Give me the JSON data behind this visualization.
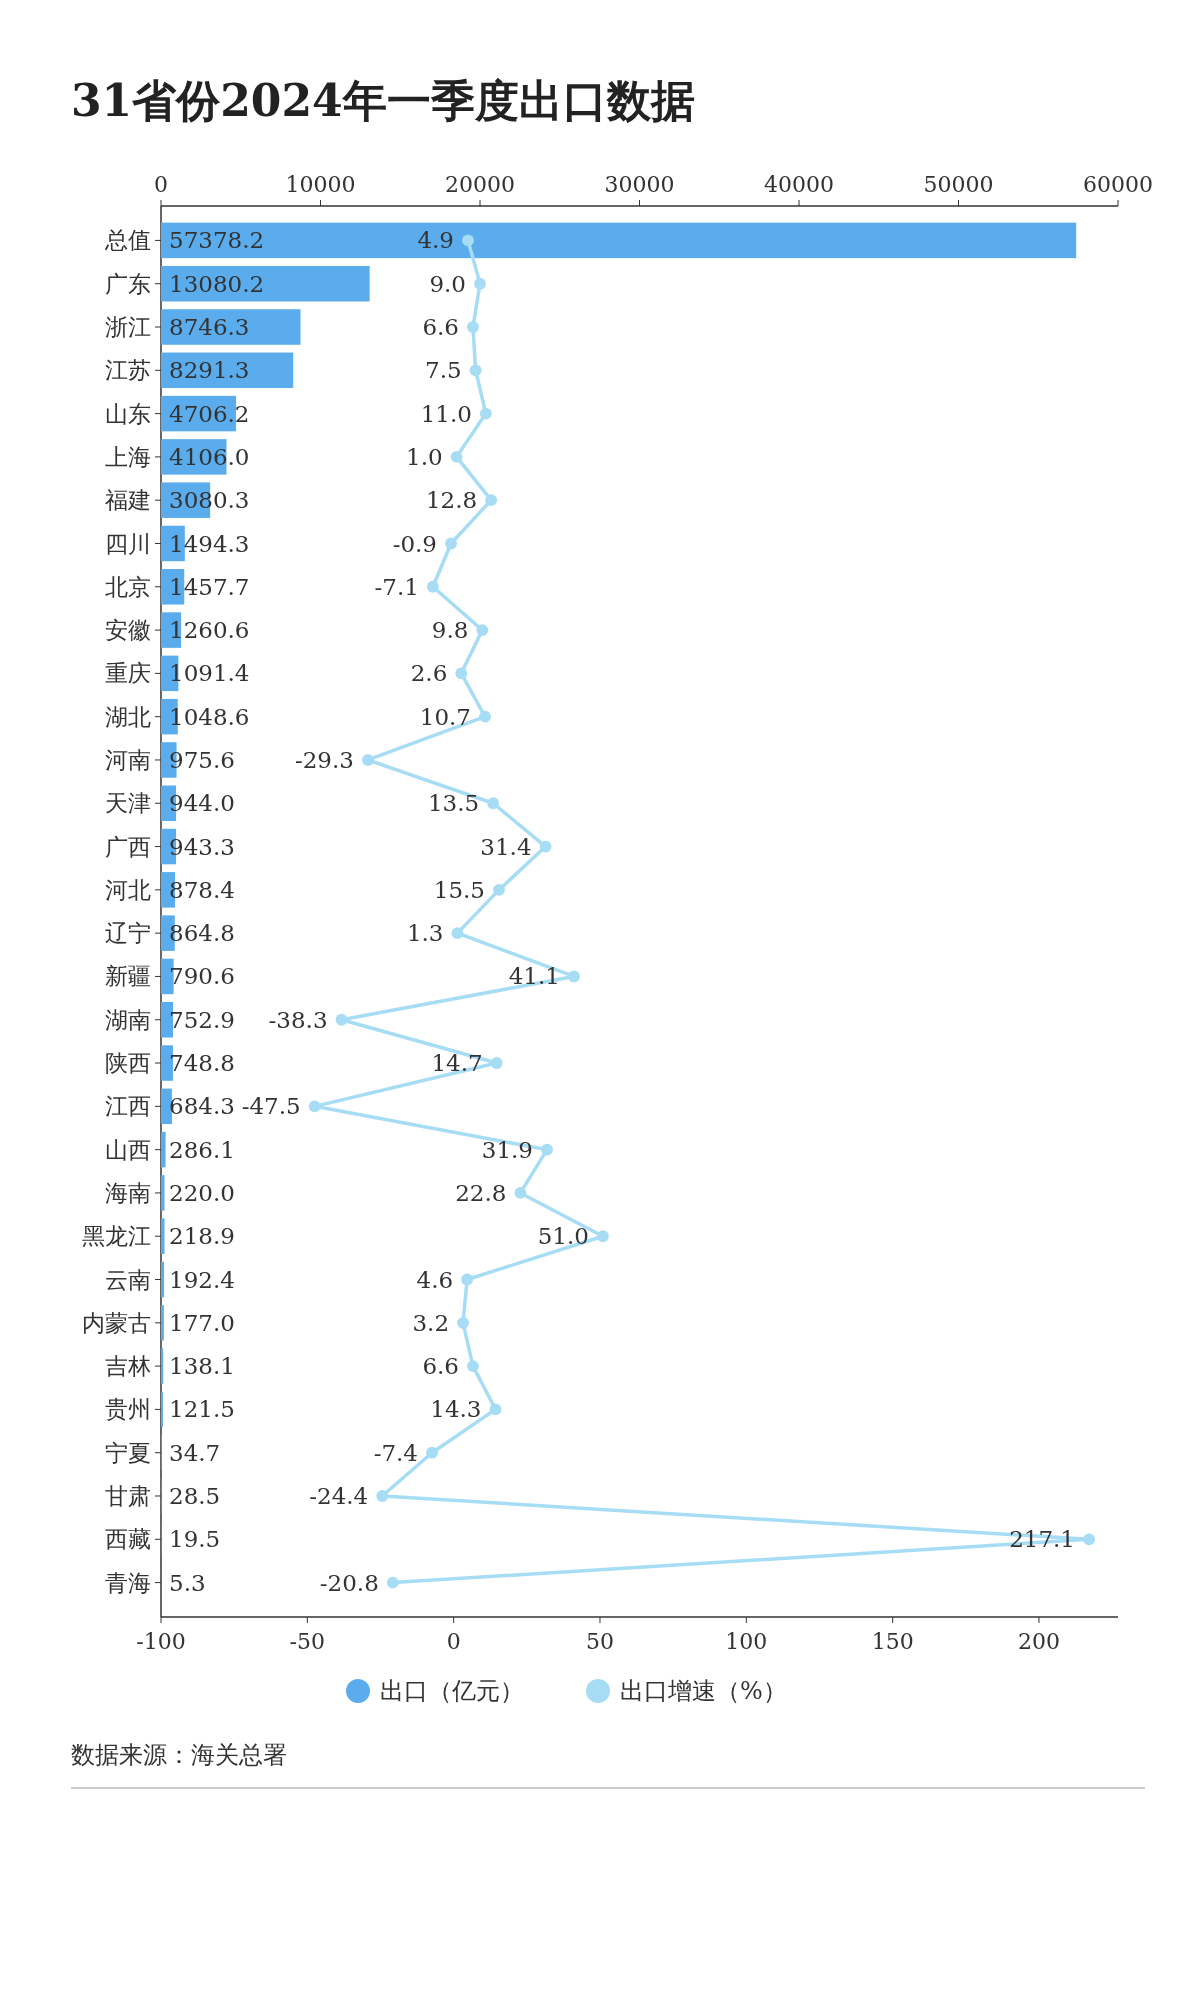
{
  "chart_data": {
    "type": "bar",
    "orientation": "horizontal",
    "title": "31省份2024年一季度出口数据",
    "categories": [
      "总值",
      "广东",
      "浙江",
      "江苏",
      "山东",
      "上海",
      "福建",
      "四川",
      "北京",
      "安徽",
      "重庆",
      "湖北",
      "河南",
      "天津",
      "广西",
      "河北",
      "辽宁",
      "新疆",
      "湖南",
      "陕西",
      "江西",
      "山西",
      "海南",
      "黑龙江",
      "云南",
      "内蒙古",
      "吉林",
      "贵州",
      "宁夏",
      "甘肃",
      "西藏",
      "青海"
    ],
    "series": [
      {
        "name": "出口（亿元）",
        "axis": "x2",
        "color": "#5aacec",
        "values": [
          57378.2,
          13080.2,
          8746.3,
          8291.3,
          4706.2,
          4106,
          3080.3,
          1494.3,
          1457.7,
          1260.6,
          1091.4,
          1048.6,
          975.6,
          944,
          943.3,
          878.4,
          864.8,
          790.6,
          752.9,
          748.8,
          684.3,
          286.1,
          220,
          218.9,
          192.4,
          177,
          138.1,
          121.5,
          34.7,
          28.5,
          19.5,
          5.3
        ],
        "value_labels": [
          "57378.2",
          "13080.2",
          "8746.3",
          "8291.3",
          "4706.2",
          "4106.0",
          "3080.3",
          "1494.3",
          "1457.7",
          "1260.6",
          "1091.4",
          "1048.6",
          "975.6",
          "944.0",
          "943.3",
          "878.4",
          "864.8",
          "790.6",
          "752.9",
          "748.8",
          "684.3",
          "286.1",
          "220.0",
          "218.9",
          "192.4",
          "177.0",
          "138.1",
          "121.5",
          "34.7",
          "28.5",
          "19.5",
          "5.3"
        ]
      },
      {
        "name": "出口增速（%）",
        "type": "line",
        "color": "#a6dcf4",
        "values": [
          4.9,
          9,
          6.6,
          7.5,
          11,
          1,
          12.8,
          -0.9,
          -7.1,
          9.8,
          2.6,
          10.7,
          -29.3,
          13.5,
          31.4,
          15.5,
          1.3,
          41.1,
          -38.3,
          14.7,
          -47.5,
          31.9,
          22.8,
          51,
          4.6,
          3.2,
          6.6,
          14.3,
          -7.4,
          -24.4,
          217.1,
          -20.8
        ],
        "value_labels": [
          "4.9",
          "9.0",
          "6.6",
          "7.5",
          "11.0",
          "1.0",
          "12.8",
          "-0.9",
          "-7.1",
          "9.8",
          "2.6",
          "10.7",
          "-29.3",
          "13.5",
          "31.4",
          "15.5",
          "1.3",
          "41.1",
          "-38.3",
          "14.7",
          "-47.5",
          "31.9",
          "22.8",
          "51.0",
          "4.6",
          "3.2",
          "6.6",
          "14.3",
          "-7.4",
          "-24.4",
          "217.1",
          "-20.8"
        ]
      }
    ],
    "x2lim": [
      0,
      60000
    ],
    "x2ticks": [
      0,
      10000,
      20000,
      30000,
      40000,
      50000,
      60000
    ],
    "xlim": [
      -100,
      227
    ],
    "xticks": [
      -100,
      -50,
      0,
      50,
      100,
      150,
      200
    ],
    "marker": "circle",
    "legend": "bottom",
    "annotations": [
      "数据来源：海关总署"
    ]
  }
}
